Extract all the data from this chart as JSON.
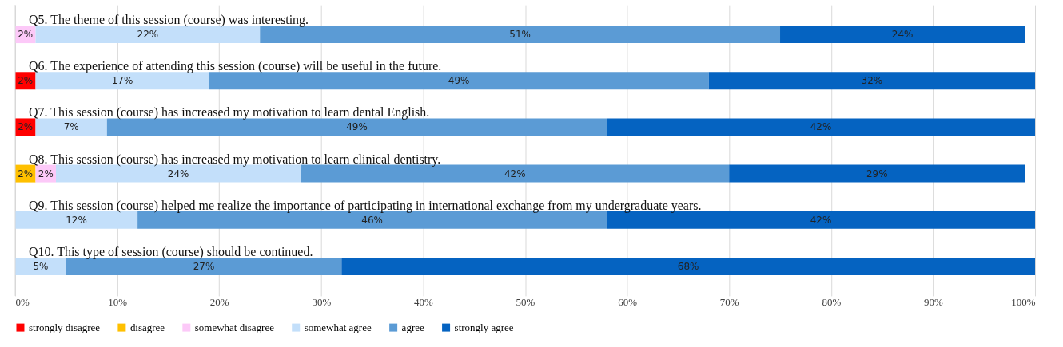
{
  "chart_data": {
    "type": "bar",
    "orientation": "horizontal",
    "stacked": true,
    "categories": [
      "Q5. The theme of this session (course) was interesting.",
      "Q6. The experience of attending this session (course) will be useful in the future.",
      "Q7. This session (course) has increased my motivation to learn dental English.",
      "Q8. This session (course) has increased my motivation to learn clinical dentistry.",
      "Q9. This session (course) helped me realize the importance of participating in international exchange from my undergraduate years.",
      "Q10. This type of session (course) should be continued."
    ],
    "series": [
      {
        "name": "strongly disagree",
        "color": "#ff0000",
        "values": [
          null,
          2,
          2,
          null,
          null,
          null
        ],
        "value_labels": [
          null,
          "2%",
          "2%",
          null,
          null,
          null
        ]
      },
      {
        "name": "disagree",
        "color": "#ffc000",
        "values": [
          null,
          null,
          null,
          2,
          null,
          null
        ],
        "value_labels": [
          null,
          null,
          null,
          "2%",
          null,
          null
        ]
      },
      {
        "name": "somewhat disagree",
        "color": "#fcc9f8",
        "values": [
          2,
          null,
          null,
          2,
          null,
          null
        ],
        "value_labels": [
          "2%",
          null,
          null,
          "2%",
          null,
          null
        ]
      },
      {
        "name": "somewhat agree",
        "color": "#c3dffa",
        "values": [
          22,
          17,
          7,
          24,
          12,
          5
        ],
        "value_labels": [
          "22%",
          "17%",
          "7%",
          "24%",
          "12%",
          "5%"
        ]
      },
      {
        "name": "agree",
        "color": "#5b9bd5",
        "values": [
          51,
          49,
          49,
          42,
          46,
          27
        ],
        "value_labels": [
          "51%",
          "49%",
          "49%",
          "42%",
          "46%",
          "27%"
        ]
      },
      {
        "name": "strongly agree",
        "color": "#0563c1",
        "values": [
          24,
          32,
          42,
          29,
          42,
          68
        ],
        "value_labels": [
          "24%",
          "32%",
          "42%",
          "29%",
          "42%",
          "68%"
        ]
      }
    ],
    "xlim": [
      0,
      100
    ],
    "xticks": [
      {
        "value": 0,
        "label": "0%"
      },
      {
        "value": 10,
        "label": "10%"
      },
      {
        "value": 20,
        "label": "20%"
      },
      {
        "value": 30,
        "label": "30%"
      },
      {
        "value": 40,
        "label": "40%"
      },
      {
        "value": 50,
        "label": "50%"
      },
      {
        "value": 60,
        "label": "60%"
      },
      {
        "value": 70,
        "label": "70%"
      },
      {
        "value": 80,
        "label": "80%"
      },
      {
        "value": 90,
        "label": "90%"
      },
      {
        "value": 100,
        "label": "100%"
      }
    ],
    "grid": "x",
    "legend": "bottom"
  }
}
